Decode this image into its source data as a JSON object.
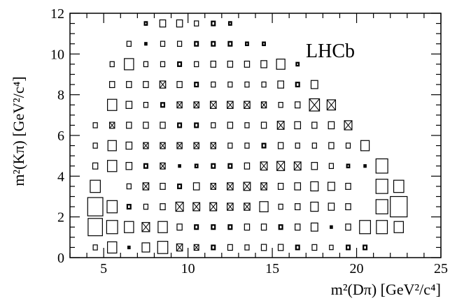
{
  "chart_data": {
    "type": "box",
    "brand_label": "LHCb",
    "xlabel": "m²(Dπ) [GeV²/c⁴]",
    "ylabel": "m²(Kπ) [GeV²/c⁴]",
    "xlim": [
      3,
      25
    ],
    "ylim": [
      0,
      12
    ],
    "x_ticks": [
      5,
      10,
      15,
      20,
      25
    ],
    "y_ticks": [
      0,
      2,
      4,
      6,
      8,
      10,
      12
    ],
    "grid": false,
    "bin_width": 1,
    "bin_height": 1,
    "note": "",
    "bins": [
      {
        "x": 4.5,
        "y": 0.5,
        "w": 0.25,
        "cross": false
      },
      {
        "x": 5.5,
        "y": 0.5,
        "w": 0.55,
        "cross": false
      },
      {
        "x": 6.5,
        "y": 0.5,
        "w": 0.1,
        "cross": false
      },
      {
        "x": 7.5,
        "y": 0.5,
        "w": 0.45,
        "cross": false
      },
      {
        "x": 8.5,
        "y": 0.5,
        "w": 0.6,
        "cross": false
      },
      {
        "x": 9.5,
        "y": 0.5,
        "w": 0.35,
        "cross": true
      },
      {
        "x": 10.5,
        "y": 0.5,
        "w": 0.28,
        "cross": true
      },
      {
        "x": 11.5,
        "y": 0.5,
        "w": 0.2,
        "cross": false
      },
      {
        "x": 12.5,
        "y": 0.5,
        "w": 0.28,
        "cross": false
      },
      {
        "x": 13.5,
        "y": 0.5,
        "w": 0.25,
        "cross": false
      },
      {
        "x": 14.5,
        "y": 0.5,
        "w": 0.3,
        "cross": false
      },
      {
        "x": 15.5,
        "y": 0.5,
        "w": 0.3,
        "cross": false
      },
      {
        "x": 16.5,
        "y": 0.5,
        "w": 0.2,
        "cross": false
      },
      {
        "x": 17.5,
        "y": 0.5,
        "w": 0.28,
        "cross": false
      },
      {
        "x": 18.5,
        "y": 0.5,
        "w": 0.22,
        "cross": false
      },
      {
        "x": 19.5,
        "y": 0.5,
        "w": 0.2,
        "cross": false
      },
      {
        "x": 20.5,
        "y": 0.5,
        "w": 0.2,
        "cross": false
      },
      {
        "x": 4.5,
        "y": 1.5,
        "w": 0.85,
        "cross": false
      },
      {
        "x": 5.5,
        "y": 1.5,
        "w": 0.65,
        "cross": false
      },
      {
        "x": 6.5,
        "y": 1.5,
        "w": 0.55,
        "cross": false
      },
      {
        "x": 7.5,
        "y": 1.5,
        "w": 0.45,
        "cross": true
      },
      {
        "x": 8.5,
        "y": 1.5,
        "w": 0.55,
        "cross": false
      },
      {
        "x": 9.5,
        "y": 1.5,
        "w": 0.3,
        "cross": false
      },
      {
        "x": 10.5,
        "y": 1.5,
        "w": 0.2,
        "cross": false
      },
      {
        "x": 11.5,
        "y": 1.5,
        "w": 0.2,
        "cross": false
      },
      {
        "x": 12.5,
        "y": 1.5,
        "w": 0.2,
        "cross": false
      },
      {
        "x": 13.5,
        "y": 1.5,
        "w": 0.3,
        "cross": false
      },
      {
        "x": 14.5,
        "y": 1.5,
        "w": 0.3,
        "cross": false
      },
      {
        "x": 15.5,
        "y": 1.5,
        "w": 0.2,
        "cross": false
      },
      {
        "x": 16.5,
        "y": 1.5,
        "w": 0.3,
        "cross": false
      },
      {
        "x": 17.5,
        "y": 1.5,
        "w": 0.4,
        "cross": false
      },
      {
        "x": 18.5,
        "y": 1.5,
        "w": 0.1,
        "cross": false
      },
      {
        "x": 19.5,
        "y": 1.5,
        "w": 0.3,
        "cross": false
      },
      {
        "x": 20.5,
        "y": 1.5,
        "w": 0.65,
        "cross": false
      },
      {
        "x": 21.5,
        "y": 1.5,
        "w": 0.65,
        "cross": false
      },
      {
        "x": 22.5,
        "y": 1.5,
        "w": 0.55,
        "cross": false
      },
      {
        "x": 4.5,
        "y": 2.5,
        "w": 0.9,
        "cross": false
      },
      {
        "x": 5.5,
        "y": 2.5,
        "w": 0.6,
        "cross": false
      },
      {
        "x": 6.5,
        "y": 2.5,
        "w": 0.2,
        "cross": false
      },
      {
        "x": 7.5,
        "y": 2.5,
        "w": 0.25,
        "cross": false
      },
      {
        "x": 8.5,
        "y": 2.5,
        "w": 0.3,
        "cross": false
      },
      {
        "x": 9.5,
        "y": 2.5,
        "w": 0.45,
        "cross": true
      },
      {
        "x": 10.5,
        "y": 2.5,
        "w": 0.4,
        "cross": true
      },
      {
        "x": 11.5,
        "y": 2.5,
        "w": 0.4,
        "cross": true
      },
      {
        "x": 12.5,
        "y": 2.5,
        "w": 0.35,
        "cross": true
      },
      {
        "x": 13.5,
        "y": 2.5,
        "w": 0.35,
        "cross": true
      },
      {
        "x": 14.5,
        "y": 2.5,
        "w": 0.5,
        "cross": false
      },
      {
        "x": 15.5,
        "y": 2.5,
        "w": 0.25,
        "cross": false
      },
      {
        "x": 16.5,
        "y": 2.5,
        "w": 0.3,
        "cross": false
      },
      {
        "x": 17.5,
        "y": 2.5,
        "w": 0.45,
        "cross": false
      },
      {
        "x": 18.5,
        "y": 2.5,
        "w": 0.35,
        "cross": false
      },
      {
        "x": 19.5,
        "y": 2.5,
        "w": 0.3,
        "cross": false
      },
      {
        "x": 21.5,
        "y": 2.5,
        "w": 0.7,
        "cross": false
      },
      {
        "x": 22.5,
        "y": 2.5,
        "w": 1.0,
        "cross": false
      },
      {
        "x": 4.5,
        "y": 3.5,
        "w": 0.6,
        "cross": false
      },
      {
        "x": 6.5,
        "y": 3.5,
        "w": 0.25,
        "cross": false
      },
      {
        "x": 7.5,
        "y": 3.5,
        "w": 0.35,
        "cross": true
      },
      {
        "x": 8.5,
        "y": 3.5,
        "w": 0.3,
        "cross": false
      },
      {
        "x": 9.5,
        "y": 3.5,
        "w": 0.2,
        "cross": false
      },
      {
        "x": 10.5,
        "y": 3.5,
        "w": 0.35,
        "cross": false
      },
      {
        "x": 11.5,
        "y": 3.5,
        "w": 0.3,
        "cross": true
      },
      {
        "x": 12.5,
        "y": 3.5,
        "w": 0.35,
        "cross": true
      },
      {
        "x": 13.5,
        "y": 3.5,
        "w": 0.4,
        "cross": true
      },
      {
        "x": 14.5,
        "y": 3.5,
        "w": 0.35,
        "cross": true
      },
      {
        "x": 15.5,
        "y": 3.5,
        "w": 0.3,
        "cross": false
      },
      {
        "x": 16.5,
        "y": 3.5,
        "w": 0.35,
        "cross": false
      },
      {
        "x": 17.5,
        "y": 3.5,
        "w": 0.45,
        "cross": false
      },
      {
        "x": 18.5,
        "y": 3.5,
        "w": 0.4,
        "cross": false
      },
      {
        "x": 19.5,
        "y": 3.5,
        "w": 0.3,
        "cross": false
      },
      {
        "x": 21.5,
        "y": 3.5,
        "w": 0.7,
        "cross": false
      },
      {
        "x": 22.5,
        "y": 3.5,
        "w": 0.6,
        "cross": false
      },
      {
        "x": 4.5,
        "y": 4.5,
        "w": 0.3,
        "cross": false
      },
      {
        "x": 5.5,
        "y": 4.5,
        "w": 0.55,
        "cross": false
      },
      {
        "x": 6.5,
        "y": 4.5,
        "w": 0.35,
        "cross": false
      },
      {
        "x": 7.5,
        "y": 4.5,
        "w": 0.2,
        "cross": false
      },
      {
        "x": 8.5,
        "y": 4.5,
        "w": 0.3,
        "cross": true
      },
      {
        "x": 9.5,
        "y": 4.5,
        "w": 0.1,
        "cross": false
      },
      {
        "x": 10.5,
        "y": 4.5,
        "w": 0.15,
        "cross": false
      },
      {
        "x": 11.5,
        "y": 4.5,
        "w": 0.2,
        "cross": false
      },
      {
        "x": 12.5,
        "y": 4.5,
        "w": 0.2,
        "cross": false
      },
      {
        "x": 13.5,
        "y": 4.5,
        "w": 0.3,
        "cross": false
      },
      {
        "x": 14.5,
        "y": 4.5,
        "w": 0.4,
        "cross": true
      },
      {
        "x": 15.5,
        "y": 4.5,
        "w": 0.45,
        "cross": true
      },
      {
        "x": 16.5,
        "y": 4.5,
        "w": 0.4,
        "cross": true
      },
      {
        "x": 17.5,
        "y": 4.5,
        "w": 0.35,
        "cross": false
      },
      {
        "x": 18.5,
        "y": 4.5,
        "w": 0.25,
        "cross": false
      },
      {
        "x": 19.5,
        "y": 4.5,
        "w": 0.15,
        "cross": false
      },
      {
        "x": 20.5,
        "y": 4.5,
        "w": 0.1,
        "cross": false
      },
      {
        "x": 21.5,
        "y": 4.5,
        "w": 0.7,
        "cross": false
      },
      {
        "x": 4.5,
        "y": 5.5,
        "w": 0.25,
        "cross": false
      },
      {
        "x": 5.5,
        "y": 5.5,
        "w": 0.5,
        "cross": false
      },
      {
        "x": 6.5,
        "y": 5.5,
        "w": 0.35,
        "cross": false
      },
      {
        "x": 7.5,
        "y": 5.5,
        "w": 0.3,
        "cross": true
      },
      {
        "x": 8.5,
        "y": 5.5,
        "w": 0.3,
        "cross": true
      },
      {
        "x": 9.5,
        "y": 5.5,
        "w": 0.3,
        "cross": true
      },
      {
        "x": 10.5,
        "y": 5.5,
        "w": 0.3,
        "cross": true
      },
      {
        "x": 11.5,
        "y": 5.5,
        "w": 0.3,
        "cross": true
      },
      {
        "x": 12.5,
        "y": 5.5,
        "w": 0.25,
        "cross": false
      },
      {
        "x": 13.5,
        "y": 5.5,
        "w": 0.25,
        "cross": false
      },
      {
        "x": 14.5,
        "y": 5.5,
        "w": 0.2,
        "cross": false
      },
      {
        "x": 15.5,
        "y": 5.5,
        "w": 0.3,
        "cross": false
      },
      {
        "x": 16.5,
        "y": 5.5,
        "w": 0.25,
        "cross": false
      },
      {
        "x": 17.5,
        "y": 5.5,
        "w": 0.25,
        "cross": false
      },
      {
        "x": 18.5,
        "y": 5.5,
        "w": 0.3,
        "cross": false
      },
      {
        "x": 19.5,
        "y": 5.5,
        "w": 0.25,
        "cross": false
      },
      {
        "x": 20.5,
        "y": 5.5,
        "w": 0.5,
        "cross": false
      },
      {
        "x": 4.5,
        "y": 6.5,
        "w": 0.25,
        "cross": false
      },
      {
        "x": 5.5,
        "y": 6.5,
        "w": 0.3,
        "cross": true
      },
      {
        "x": 6.5,
        "y": 6.5,
        "w": 0.3,
        "cross": false
      },
      {
        "x": 7.5,
        "y": 6.5,
        "w": 0.3,
        "cross": false
      },
      {
        "x": 8.5,
        "y": 6.5,
        "w": 0.3,
        "cross": false
      },
      {
        "x": 9.5,
        "y": 6.5,
        "w": 0.2,
        "cross": false
      },
      {
        "x": 10.5,
        "y": 6.5,
        "w": 0.2,
        "cross": false
      },
      {
        "x": 11.5,
        "y": 6.5,
        "w": 0.25,
        "cross": false
      },
      {
        "x": 12.5,
        "y": 6.5,
        "w": 0.3,
        "cross": false
      },
      {
        "x": 13.5,
        "y": 6.5,
        "w": 0.25,
        "cross": false
      },
      {
        "x": 14.5,
        "y": 6.5,
        "w": 0.3,
        "cross": false
      },
      {
        "x": 15.5,
        "y": 6.5,
        "w": 0.4,
        "cross": true
      },
      {
        "x": 16.5,
        "y": 6.5,
        "w": 0.35,
        "cross": false
      },
      {
        "x": 17.5,
        "y": 6.5,
        "w": 0.3,
        "cross": false
      },
      {
        "x": 18.5,
        "y": 6.5,
        "w": 0.35,
        "cross": false
      },
      {
        "x": 19.5,
        "y": 6.5,
        "w": 0.45,
        "cross": true
      },
      {
        "x": 5.5,
        "y": 7.5,
        "w": 0.55,
        "cross": false
      },
      {
        "x": 6.5,
        "y": 7.5,
        "w": 0.35,
        "cross": false
      },
      {
        "x": 7.5,
        "y": 7.5,
        "w": 0.25,
        "cross": false
      },
      {
        "x": 8.5,
        "y": 7.5,
        "w": 0.2,
        "cross": false
      },
      {
        "x": 9.5,
        "y": 7.5,
        "w": 0.3,
        "cross": true
      },
      {
        "x": 10.5,
        "y": 7.5,
        "w": 0.3,
        "cross": true
      },
      {
        "x": 11.5,
        "y": 7.5,
        "w": 0.35,
        "cross": true
      },
      {
        "x": 12.5,
        "y": 7.5,
        "w": 0.35,
        "cross": true
      },
      {
        "x": 13.5,
        "y": 7.5,
        "w": 0.35,
        "cross": true
      },
      {
        "x": 14.5,
        "y": 7.5,
        "w": 0.3,
        "cross": true
      },
      {
        "x": 15.5,
        "y": 7.5,
        "w": 0.25,
        "cross": false
      },
      {
        "x": 16.5,
        "y": 7.5,
        "w": 0.3,
        "cross": false
      },
      {
        "x": 17.5,
        "y": 7.5,
        "w": 0.6,
        "cross": true
      },
      {
        "x": 18.5,
        "y": 7.5,
        "w": 0.5,
        "cross": true
      },
      {
        "x": 5.5,
        "y": 8.5,
        "w": 0.3,
        "cross": false
      },
      {
        "x": 6.5,
        "y": 8.5,
        "w": 0.3,
        "cross": false
      },
      {
        "x": 7.5,
        "y": 8.5,
        "w": 0.3,
        "cross": false
      },
      {
        "x": 8.5,
        "y": 8.5,
        "w": 0.35,
        "cross": true
      },
      {
        "x": 9.5,
        "y": 8.5,
        "w": 0.3,
        "cross": false
      },
      {
        "x": 10.5,
        "y": 8.5,
        "w": 0.2,
        "cross": false
      },
      {
        "x": 11.5,
        "y": 8.5,
        "w": 0.25,
        "cross": false
      },
      {
        "x": 12.5,
        "y": 8.5,
        "w": 0.25,
        "cross": false
      },
      {
        "x": 13.5,
        "y": 8.5,
        "w": 0.25,
        "cross": false
      },
      {
        "x": 14.5,
        "y": 8.5,
        "w": 0.25,
        "cross": false
      },
      {
        "x": 15.5,
        "y": 8.5,
        "w": 0.35,
        "cross": false
      },
      {
        "x": 16.5,
        "y": 8.5,
        "w": 0.2,
        "cross": false
      },
      {
        "x": 17.5,
        "y": 8.5,
        "w": 0.4,
        "cross": false
      },
      {
        "x": 5.5,
        "y": 9.5,
        "w": 0.25,
        "cross": false
      },
      {
        "x": 6.5,
        "y": 9.5,
        "w": 0.55,
        "cross": false
      },
      {
        "x": 7.5,
        "y": 9.5,
        "w": 0.25,
        "cross": false
      },
      {
        "x": 8.5,
        "y": 9.5,
        "w": 0.25,
        "cross": false
      },
      {
        "x": 9.5,
        "y": 9.5,
        "w": 0.2,
        "cross": false
      },
      {
        "x": 10.5,
        "y": 9.5,
        "w": 0.25,
        "cross": false
      },
      {
        "x": 11.5,
        "y": 9.5,
        "w": 0.3,
        "cross": false
      },
      {
        "x": 12.5,
        "y": 9.5,
        "w": 0.3,
        "cross": false
      },
      {
        "x": 13.5,
        "y": 9.5,
        "w": 0.3,
        "cross": false
      },
      {
        "x": 14.5,
        "y": 9.5,
        "w": 0.35,
        "cross": false
      },
      {
        "x": 15.5,
        "y": 9.5,
        "w": 0.5,
        "cross": false
      },
      {
        "x": 16.5,
        "y": 9.5,
        "w": 0.15,
        "cross": false
      },
      {
        "x": 6.5,
        "y": 10.5,
        "w": 0.25,
        "cross": false
      },
      {
        "x": 7.5,
        "y": 10.5,
        "w": 0.1,
        "cross": false
      },
      {
        "x": 8.5,
        "y": 10.5,
        "w": 0.25,
        "cross": false
      },
      {
        "x": 9.5,
        "y": 10.5,
        "w": 0.25,
        "cross": false
      },
      {
        "x": 10.5,
        "y": 10.5,
        "w": 0.2,
        "cross": false
      },
      {
        "x": 11.5,
        "y": 10.5,
        "w": 0.2,
        "cross": false
      },
      {
        "x": 12.5,
        "y": 10.5,
        "w": 0.2,
        "cross": false
      },
      {
        "x": 13.5,
        "y": 10.5,
        "w": 0.15,
        "cross": false
      },
      {
        "x": 14.5,
        "y": 10.5,
        "w": 0.15,
        "cross": false
      },
      {
        "x": 7.5,
        "y": 11.5,
        "w": 0.15,
        "cross": false
      },
      {
        "x": 8.5,
        "y": 11.5,
        "w": 0.35,
        "cross": false
      },
      {
        "x": 9.5,
        "y": 11.5,
        "w": 0.35,
        "cross": false
      },
      {
        "x": 10.5,
        "y": 11.5,
        "w": 0.25,
        "cross": false
      },
      {
        "x": 11.5,
        "y": 11.5,
        "w": 0.2,
        "cross": false
      },
      {
        "x": 12.5,
        "y": 11.5,
        "w": 0.15,
        "cross": false
      }
    ]
  }
}
